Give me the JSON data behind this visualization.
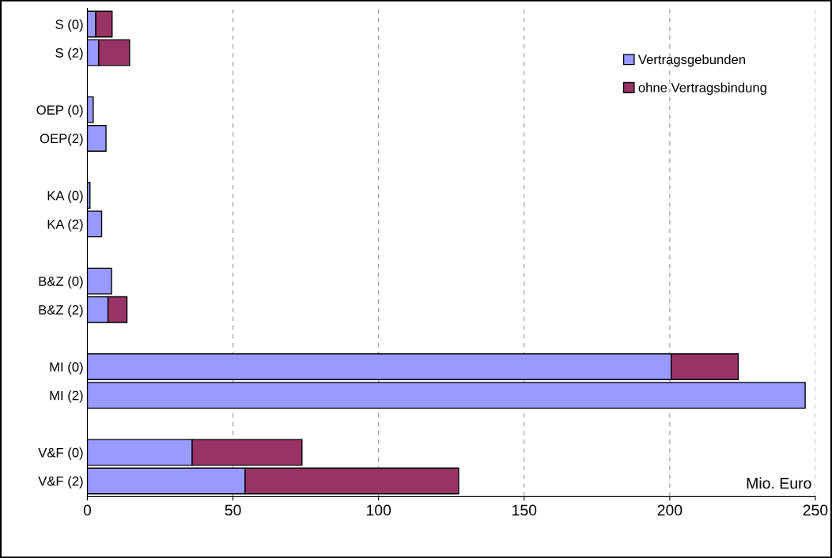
{
  "chart_data": {
    "type": "bar",
    "orientation": "horizontal",
    "stacked": true,
    "categories": [
      "S (0)",
      "S (2)",
      null,
      "OEP (0)",
      "OEP(2)",
      null,
      "KA (0)",
      "KA (2)",
      null,
      "B&Z (0)",
      "B&Z (2)",
      null,
      "MI (0)",
      "MI (2)",
      null,
      "V&F (0)",
      "V&F (2)"
    ],
    "series": [
      {
        "name": "Vertragsgebunden",
        "color": "#9999ff",
        "values": [
          2.9,
          3.9,
          null,
          2.0,
          6.4,
          null,
          0.9,
          4.9,
          null,
          8.3,
          7.1,
          null,
          200.5,
          246.5,
          null,
          36,
          54.2
        ]
      },
      {
        "name": "ohne Vertragsbindung",
        "color": "#993366",
        "values": [
          5.6,
          10.6,
          null,
          null,
          null,
          null,
          null,
          null,
          null,
          null,
          6.5,
          null,
          23,
          null,
          null,
          37.7,
          73.3
        ]
      }
    ],
    "xlim": [
      0,
      250
    ],
    "xticks": [
      0,
      50,
      100,
      150,
      200,
      250
    ],
    "grid": "x",
    "legend": "top right",
    "annotations": [
      "Mio. Euro"
    ]
  }
}
